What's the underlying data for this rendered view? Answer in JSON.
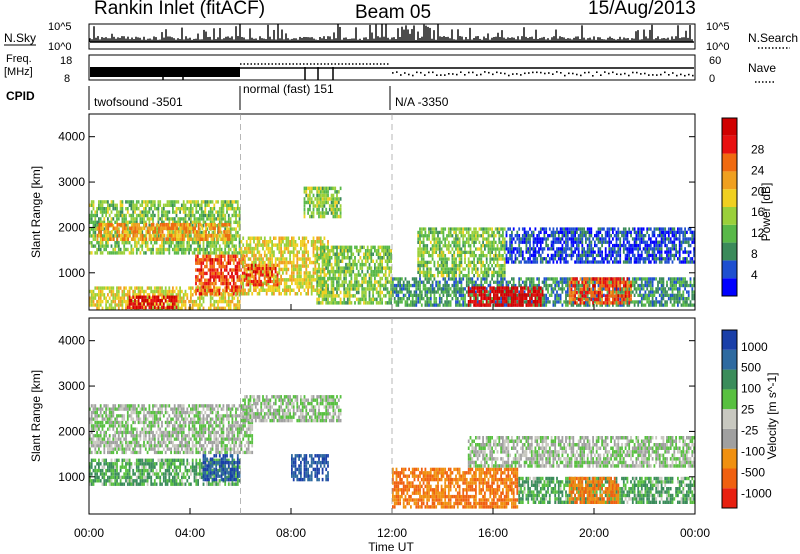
{
  "header": {
    "station": "Rankin Inlet (fitACF)",
    "beam": "Beam 05",
    "date": "15/Aug/2013"
  },
  "strips": {
    "nsky_label": "N.Sky",
    "nsearch_label": "N.Search",
    "noise_ticks_left": [
      "10^5",
      "10^0"
    ],
    "noise_ticks_right": [
      "10^5",
      "10^0"
    ],
    "freq_label": "Freq.",
    "freq_unit": "[MHz]",
    "freq_ticks": [
      "18",
      "8"
    ],
    "nave_label": "Nave",
    "nave_ticks": [
      "60",
      "0"
    ],
    "cpid_label": "CPID",
    "cpid_segments": [
      "twofsound -3501",
      "normal (fast) 151",
      "N/A -3350"
    ]
  },
  "chart_data": [
    {
      "type": "heatmap",
      "panel": "power",
      "xlabel": "",
      "ylabel": "Slant Range [km]",
      "x_ticks": [
        "00:00",
        "04:00",
        "08:00",
        "12:00",
        "16:00",
        "20:00",
        "00:00"
      ],
      "y_ticks": [
        "1000",
        "2000",
        "3000",
        "4000"
      ],
      "ylim": [
        180,
        4500
      ],
      "xlim_hours": [
        0,
        24
      ],
      "colorbar": {
        "label": "Power [dB]",
        "ticks": [
          "4",
          "8",
          "12",
          "16",
          "20",
          "24",
          "28"
        ],
        "colors": [
          "#0000ff",
          "#1e4fd0",
          "#3a8a5a",
          "#58b848",
          "#9ad03a",
          "#f0d020",
          "#f0a020",
          "#f06a10",
          "#e81010",
          "#d00000"
        ]
      },
      "regions": [
        {
          "t0": 0.0,
          "t1": 6.0,
          "r0": 1400,
          "r1": 2600,
          "value": 12
        },
        {
          "t0": 0.3,
          "t1": 5.6,
          "r0": 1700,
          "r1": 2100,
          "value": 20
        },
        {
          "t0": 0.0,
          "t1": 6.0,
          "r0": 180,
          "r1": 700,
          "value": 16
        },
        {
          "t0": 1.5,
          "t1": 3.5,
          "r0": 200,
          "r1": 500,
          "value": 28
        },
        {
          "t0": 4.2,
          "t1": 6.2,
          "r0": 500,
          "r1": 1400,
          "value": 24
        },
        {
          "t0": 6.0,
          "t1": 9.5,
          "r0": 500,
          "r1": 1800,
          "value": 16
        },
        {
          "t0": 6.2,
          "t1": 7.5,
          "r0": 700,
          "r1": 1200,
          "value": 24
        },
        {
          "t0": 8.5,
          "t1": 10.0,
          "r0": 2200,
          "r1": 2900,
          "value": 12
        },
        {
          "t0": 9.0,
          "t1": 12.0,
          "r0": 300,
          "r1": 1600,
          "value": 12
        },
        {
          "t0": 12.0,
          "t1": 24.0,
          "r0": 250,
          "r1": 900,
          "value": 8
        },
        {
          "t0": 13.0,
          "t1": 16.5,
          "r0": 900,
          "r1": 2000,
          "value": 12
        },
        {
          "t0": 15.0,
          "t1": 18.0,
          "r0": 250,
          "r1": 700,
          "value": 28
        },
        {
          "t0": 16.5,
          "t1": 24.0,
          "r0": 1200,
          "r1": 2000,
          "value": 4
        },
        {
          "t0": 19.0,
          "t1": 21.5,
          "r0": 300,
          "r1": 900,
          "value": 24
        }
      ]
    },
    {
      "type": "heatmap",
      "panel": "velocity",
      "xlabel": "Time UT",
      "ylabel": "Slant Range [km]",
      "x_ticks": [
        "00:00",
        "04:00",
        "08:00",
        "12:00",
        "16:00",
        "20:00",
        "00:00"
      ],
      "y_ticks": [
        "1000",
        "2000",
        "3000",
        "4000"
      ],
      "ylim": [
        180,
        4500
      ],
      "xlim_hours": [
        0,
        24
      ],
      "colorbar": {
        "label": "Velocity [m s^-1]",
        "ticks": [
          "1000",
          "500",
          "100",
          "25",
          "-25",
          "-100",
          "-500",
          "-1000"
        ],
        "colors": [
          "#1a3fa8",
          "#2e6aa0",
          "#3a8c5a",
          "#58c040",
          "#c8c8c0",
          "#a0a0a0",
          "#f09010",
          "#f06010",
          "#e82010"
        ]
      },
      "regions": [
        {
          "t0": 0.0,
          "t1": 6.5,
          "r0": 1500,
          "r1": 2600,
          "value": 0
        },
        {
          "t0": 0.0,
          "t1": 6.0,
          "r0": 800,
          "r1": 1400,
          "value": 100
        },
        {
          "t0": 4.5,
          "t1": 6.0,
          "r0": 900,
          "r1": 1500,
          "value": 1000
        },
        {
          "t0": 6.0,
          "t1": 10.0,
          "r0": 2200,
          "r1": 2800,
          "value": 0
        },
        {
          "t0": 8.0,
          "t1": 9.5,
          "r0": 900,
          "r1": 1500,
          "value": 1000
        },
        {
          "t0": 12.0,
          "t1": 17.0,
          "r0": 300,
          "r1": 1200,
          "value": -500
        },
        {
          "t0": 15.0,
          "t1": 24.0,
          "r0": 1200,
          "r1": 1900,
          "value": 0
        },
        {
          "t0": 17.0,
          "t1": 24.0,
          "r0": 400,
          "r1": 1000,
          "value": 100
        },
        {
          "t0": 19.0,
          "t1": 21.0,
          "r0": 400,
          "r1": 1000,
          "value": -500
        }
      ]
    }
  ]
}
